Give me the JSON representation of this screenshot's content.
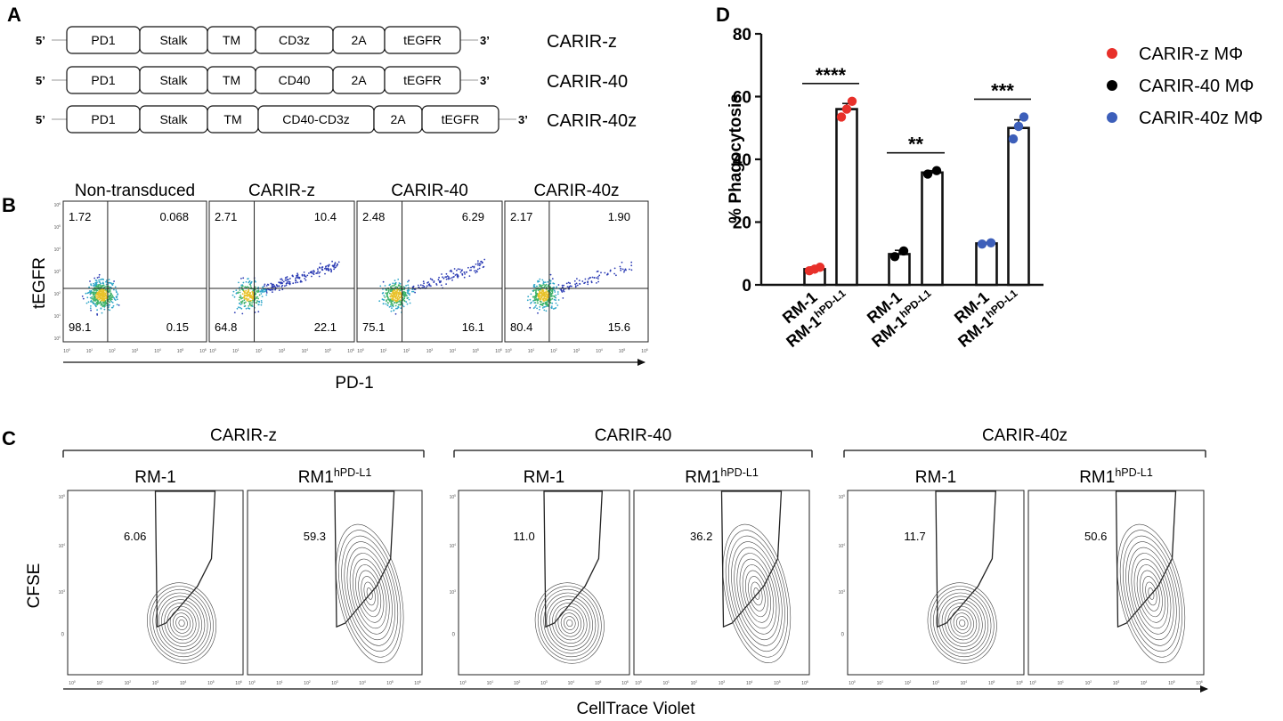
{
  "panel_labels": {
    "a": "A",
    "b": "B",
    "c": "C",
    "d": "D"
  },
  "constructs": {
    "five_prime": "5’",
    "three_prime": "3’",
    "rows": [
      {
        "name": "CARIR-z",
        "segments": [
          "PD1",
          "Stalk",
          "TM",
          "CD3z",
          "2A",
          "tEGFR"
        ]
      },
      {
        "name": "CARIR-40",
        "segments": [
          "PD1",
          "Stalk",
          "TM",
          "CD40",
          "2A",
          "tEGFR"
        ]
      },
      {
        "name": "CARIR-40z",
        "segments": [
          "PD1",
          "Stalk",
          "TM",
          "CD40-CD3z",
          "2A",
          "tEGFR"
        ]
      }
    ]
  },
  "flow_b": {
    "y_label": "tEGFR",
    "x_label": "PD-1",
    "tick_label": "10",
    "tick_exponents": [
      "0",
      "1",
      "2",
      "3",
      "4",
      "5",
      "6"
    ],
    "plots": [
      {
        "title": "Non-transduced",
        "q_ul": "1.72",
        "q_ur": "0.068",
        "q_ll": "98.1",
        "q_lr": "0.15"
      },
      {
        "title": "CARIR-z",
        "q_ul": "2.71",
        "q_ur": "10.4",
        "q_ll": "64.8",
        "q_lr": "22.1"
      },
      {
        "title": "CARIR-40",
        "q_ul": "2.48",
        "q_ur": "6.29",
        "q_ll": "75.1",
        "q_lr": "16.1"
      },
      {
        "title": "CARIR-40z",
        "q_ul": "2.17",
        "q_ur": "1.90",
        "q_ll": "80.4",
        "q_lr": "15.6"
      }
    ]
  },
  "flow_c": {
    "y_label": "CFSE",
    "x_label": "CellTrace Violet",
    "tick_label": "10",
    "tick_exponents": [
      "0",
      "1",
      "2",
      "3",
      "4",
      "5",
      "6"
    ],
    "y_zero_tick": "0",
    "groups": [
      {
        "name": "CARIR-z",
        "plots": [
          {
            "title_main": "RM-1",
            "title_sup": "",
            "gate": "6.06"
          },
          {
            "title_main": "RM1",
            "title_sup": "hPD-L1",
            "gate": "59.3"
          }
        ]
      },
      {
        "name": "CARIR-40",
        "plots": [
          {
            "title_main": "RM-1",
            "title_sup": "",
            "gate": "11.0"
          },
          {
            "title_main": "RM1",
            "title_sup": "hPD-L1",
            "gate": "36.2"
          }
        ]
      },
      {
        "name": "CARIR-40z",
        "plots": [
          {
            "title_main": "RM-1",
            "title_sup": "",
            "gate": "11.7"
          },
          {
            "title_main": "RM1",
            "title_sup": "hPD-L1",
            "gate": "50.6"
          }
        ]
      }
    ]
  },
  "chart_data": {
    "type": "bar",
    "title": "",
    "ylabel": "% Phagocytosis",
    "xlabel": "",
    "ylim": [
      0,
      80
    ],
    "yticks": [
      0,
      20,
      40,
      60,
      80
    ],
    "groups": [
      {
        "series": "CARIR-z MΦ",
        "color": "#e8302a",
        "significance": "****",
        "bars": [
          {
            "main": "RM-1",
            "sup": "",
            "value": 5.0,
            "err": 0.7,
            "points": [
              4.5,
              5.0,
              5.6
            ]
          },
          {
            "main": "RM-1",
            "sup": "hPD-L1",
            "value": 56.0,
            "err": 1.8,
            "points": [
              53.5,
              56.0,
              58.5
            ]
          }
        ]
      },
      {
        "series": "CARIR-40 MΦ",
        "color": "#000000",
        "significance": "**",
        "bars": [
          {
            "main": "RM-1",
            "sup": "",
            "value": 9.8,
            "err": 1.2,
            "points": [
              9.0,
              10.8
            ]
          },
          {
            "main": "RM-1",
            "sup": "hPD-L1",
            "value": 35.8,
            "err": 0.6,
            "points": [
              35.3,
              36.4
            ]
          }
        ]
      },
      {
        "series": "CARIR-40z MΦ",
        "color": "#3d5fba",
        "significance": "***",
        "bars": [
          {
            "main": "RM-1",
            "sup": "",
            "value": 13.2,
            "err": 0.3,
            "points": [
              13.0,
              13.4
            ]
          },
          {
            "main": "RM-1",
            "sup": "hPD-L1",
            "value": 50.0,
            "err": 2.6,
            "points": [
              46.5,
              50.5,
              53.5
            ]
          }
        ]
      }
    ],
    "legend": [
      {
        "label": "CARIR-z MΦ",
        "color": "#e8302a"
      },
      {
        "label": "CARIR-40 MΦ",
        "color": "#000000"
      },
      {
        "label": "CARIR-40z MΦ",
        "color": "#3d5fba"
      }
    ],
    "legend_position": "top-right"
  }
}
